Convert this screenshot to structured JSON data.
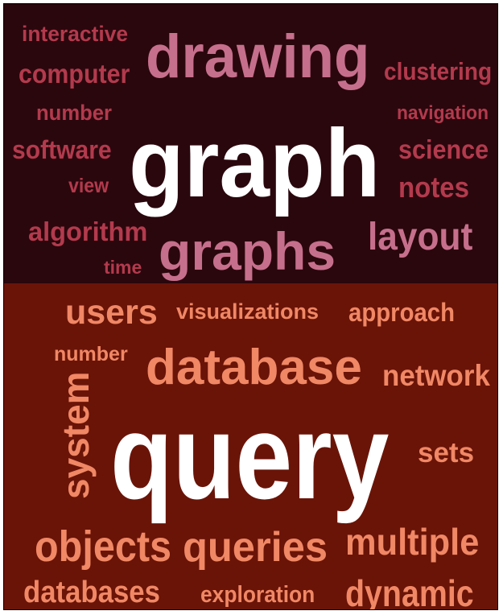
{
  "colors": {
    "top_background": "#2a070d",
    "bottom_background": "#6a1408",
    "top_small_words": "#b33a4d",
    "top_large_words": "#c66f8c",
    "top_key_word": "#ffffff",
    "bottom_words": "#f08765",
    "bottom_key_word": "#ffffff"
  },
  "top_cluster": {
    "words": [
      "interactive",
      "drawing",
      "computer",
      "clustering",
      "number",
      "navigation",
      "graph",
      "software",
      "science",
      "view",
      "notes",
      "algorithm",
      "layout",
      "graphs",
      "time"
    ]
  },
  "bottom_cluster": {
    "words": [
      "users",
      "visualizations",
      "approach",
      "number",
      "database",
      "network",
      "system",
      "query",
      "sets",
      "objects",
      "queries",
      "multiple",
      "databases",
      "exploration",
      "dynamic"
    ]
  }
}
